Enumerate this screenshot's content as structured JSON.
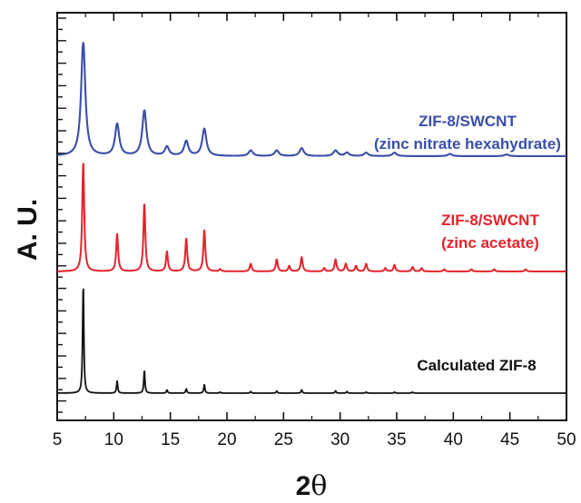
{
  "chart_data": {
    "type": "line",
    "xlabel_main": "2",
    "xlabel_symbol": "θ",
    "ylabel": "A. U.",
    "xlim": [
      5,
      50
    ],
    "xticks": [
      5,
      10,
      15,
      20,
      25,
      30,
      35,
      40,
      45,
      50
    ],
    "yticks_shown": false,
    "grid": false,
    "legend": "none (inline annotations)",
    "series": [
      {
        "name": "ZIF-8/SWCNT (zinc nitrate hexahydrate)",
        "color": "#3a4fa8",
        "label_lines": [
          "ZIF-8/SWCNT",
          "(zinc nitrate hexahydrate)"
        ],
        "peak_width": 0.22,
        "peaks": [
          [
            7.3,
            100
          ],
          [
            10.3,
            28
          ],
          [
            12.7,
            40
          ],
          [
            14.7,
            8
          ],
          [
            16.4,
            13
          ],
          [
            18.0,
            24
          ],
          [
            22.1,
            5
          ],
          [
            24.4,
            5
          ],
          [
            26.6,
            7
          ],
          [
            29.6,
            5
          ],
          [
            30.6,
            3
          ],
          [
            32.3,
            3
          ],
          [
            34.8,
            3
          ],
          [
            39.7,
            2
          ],
          [
            44.7,
            1.5
          ]
        ]
      },
      {
        "name": "ZIF-8/SWCNT (zinc acetate)",
        "color": "#e3232b",
        "label_lines": [
          "ZIF-8/SWCNT",
          "(zinc acetate)"
        ],
        "peak_width": 0.1,
        "peaks": [
          [
            7.3,
            100
          ],
          [
            10.3,
            34
          ],
          [
            12.7,
            62
          ],
          [
            14.7,
            18
          ],
          [
            16.4,
            30
          ],
          [
            18.0,
            38
          ],
          [
            19.4,
            2
          ],
          [
            22.1,
            7
          ],
          [
            24.4,
            11
          ],
          [
            25.5,
            5
          ],
          [
            26.6,
            13
          ],
          [
            28.6,
            3
          ],
          [
            29.6,
            11
          ],
          [
            30.5,
            7
          ],
          [
            31.4,
            5
          ],
          [
            32.3,
            7
          ],
          [
            34.0,
            3
          ],
          [
            34.8,
            6
          ],
          [
            36.4,
            4
          ],
          [
            37.2,
            3
          ],
          [
            39.2,
            2
          ],
          [
            41.6,
            2
          ],
          [
            43.6,
            2
          ],
          [
            46.4,
            2
          ]
        ]
      },
      {
        "name": "Calculated ZIF-8",
        "color": "#111111",
        "label_lines": [
          "Calculated ZIF-8"
        ],
        "peak_width": 0.06,
        "peaks": [
          [
            7.3,
            100
          ],
          [
            10.3,
            11
          ],
          [
            12.7,
            21
          ],
          [
            14.7,
            3
          ],
          [
            16.4,
            4
          ],
          [
            18.0,
            8
          ],
          [
            19.4,
            1
          ],
          [
            22.1,
            1.5
          ],
          [
            24.4,
            2
          ],
          [
            26.6,
            3
          ],
          [
            29.6,
            2
          ],
          [
            30.6,
            1.5
          ],
          [
            32.3,
            1
          ],
          [
            34.8,
            1
          ],
          [
            36.4,
            1
          ]
        ]
      }
    ]
  }
}
